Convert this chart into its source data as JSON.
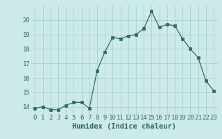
{
  "x": [
    0,
    1,
    2,
    3,
    4,
    5,
    6,
    7,
    8,
    9,
    10,
    11,
    12,
    13,
    14,
    15,
    16,
    17,
    18,
    19,
    20,
    21,
    22,
    23
  ],
  "y": [
    13.9,
    14.0,
    13.8,
    13.8,
    14.1,
    14.3,
    14.3,
    13.9,
    16.5,
    17.8,
    18.8,
    18.7,
    18.9,
    19.0,
    19.4,
    20.6,
    19.5,
    19.7,
    19.6,
    18.7,
    18.0,
    17.4,
    15.8,
    15.1
  ],
  "xlabel": "Humidex (Indice chaleur)",
  "ylim": [
    13.5,
    21.0
  ],
  "xlim": [
    -0.5,
    23.5
  ],
  "yticks": [
    14,
    15,
    16,
    17,
    18,
    19,
    20
  ],
  "xticks": [
    0,
    1,
    2,
    3,
    4,
    5,
    6,
    7,
    8,
    9,
    10,
    11,
    12,
    13,
    14,
    15,
    16,
    17,
    18,
    19,
    20,
    21,
    22,
    23
  ],
  "line_color": "#2e6b5e",
  "marker_color": "#2e6b5e",
  "bg_color": "#cceaea",
  "grid_color": "#aacfcf",
  "tick_color": "#2e6b5e",
  "label_color": "#2e6b5e",
  "xlabel_fontsize": 7.5,
  "tick_fontsize": 6.5
}
